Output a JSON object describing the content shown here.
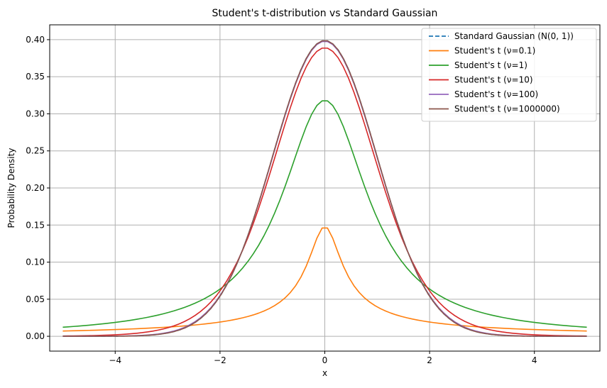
{
  "chart_data": {
    "type": "line",
    "title": "Student's t-distribution vs Standard Gaussian",
    "xlabel": "x",
    "ylabel": "Probability Density",
    "xlim": [
      -5.25,
      5.25
    ],
    "ylim": [
      -0.02,
      0.42
    ],
    "xticks": [
      -4,
      -2,
      0,
      2,
      4
    ],
    "xtick_labels": [
      "−4",
      "−2",
      "0",
      "2",
      "4"
    ],
    "yticks": [
      0.0,
      0.05,
      0.1,
      0.15,
      0.2,
      0.25,
      0.3,
      0.35,
      0.4
    ],
    "ytick_labels": [
      "0.00",
      "0.05",
      "0.10",
      "0.15",
      "0.20",
      "0.25",
      "0.30",
      "0.35",
      "0.40"
    ],
    "grid": true,
    "legend_position": "top-right",
    "x_domain": [
      -5,
      5
    ],
    "series": [
      {
        "name": "Standard Gaussian (N(0, 1))",
        "distribution": "normal",
        "color": "#1f77b4",
        "dash": "dashed"
      },
      {
        "name": "Student's t (ν=0.1)",
        "distribution": "student_t",
        "nu": 0.1,
        "color": "#ff7f0e",
        "dash": "solid",
        "peak": 0.147
      },
      {
        "name": "Student's t (ν=1)",
        "distribution": "student_t",
        "nu": 1,
        "color": "#2ca02c",
        "dash": "solid",
        "peak": 0.318
      },
      {
        "name": "Student's t (ν=10)",
        "distribution": "student_t",
        "nu": 10,
        "color": "#d62728",
        "dash": "solid",
        "peak": 0.389
      },
      {
        "name": "Student's t (ν=100)",
        "distribution": "student_t",
        "nu": 100,
        "color": "#9467bd",
        "dash": "solid",
        "peak": 0.398
      },
      {
        "name": "Student's t (ν=1000000)",
        "distribution": "student_t",
        "nu": 1000000,
        "color": "#8c564b",
        "dash": "solid",
        "peak": 0.399
      }
    ]
  }
}
